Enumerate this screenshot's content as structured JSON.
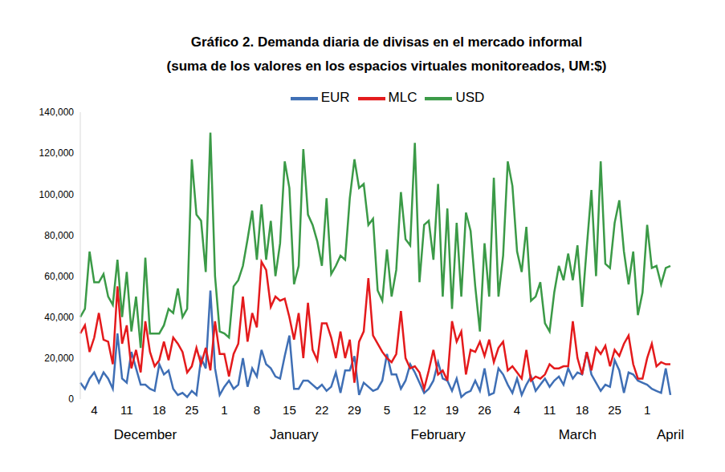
{
  "chart_data": {
    "type": "line",
    "title": "Gráfico 2. Demanda diaria de divisas en el mercado informal",
    "subtitle": "(suma de los valores en los espacios virtuales monitoreados, UM:$)",
    "categories": [
      null,
      null,
      null,
      "4",
      null,
      null,
      null,
      null,
      null,
      null,
      "11",
      null,
      null,
      null,
      null,
      null,
      null,
      "18",
      null,
      null,
      null,
      null,
      null,
      null,
      "25",
      null,
      null,
      null,
      null,
      null,
      null,
      "1",
      null,
      null,
      null,
      null,
      null,
      null,
      "8",
      null,
      null,
      null,
      null,
      null,
      null,
      "15",
      null,
      null,
      null,
      null,
      null,
      null,
      "22",
      null,
      null,
      null,
      null,
      null,
      null,
      "29",
      null,
      null,
      null,
      null,
      null,
      null,
      "5",
      null,
      null,
      null,
      null,
      null,
      null,
      "12",
      null,
      null,
      null,
      null,
      null,
      null,
      "19",
      null,
      null,
      null,
      null,
      null,
      null,
      "26",
      null,
      null,
      null,
      null,
      null,
      null,
      "4",
      null,
      null,
      null,
      null,
      null,
      null,
      "11",
      null,
      null,
      null,
      null,
      null,
      null,
      "18",
      null,
      null,
      null,
      null,
      null,
      null,
      "25",
      null,
      null,
      null,
      null,
      null,
      null,
      "1",
      null,
      null,
      null,
      null,
      null
    ],
    "months": [
      null,
      null,
      null,
      null,
      null,
      null,
      null,
      null,
      null,
      null,
      null,
      null,
      null,
      null,
      "December",
      null,
      null,
      null,
      null,
      null,
      null,
      null,
      null,
      null,
      null,
      null,
      null,
      null,
      null,
      null,
      null,
      null,
      null,
      null,
      null,
      null,
      null,
      null,
      null,
      null,
      null,
      null,
      null,
      null,
      null,
      null,
      "January",
      null,
      null,
      null,
      null,
      null,
      null,
      null,
      null,
      null,
      null,
      null,
      null,
      null,
      null,
      null,
      null,
      null,
      null,
      null,
      null,
      null,
      null,
      null,
      null,
      null,
      null,
      null,
      null,
      null,
      null,
      "February",
      null,
      null,
      null,
      null,
      null,
      null,
      null,
      null,
      null,
      null,
      null,
      null,
      null,
      null,
      null,
      null,
      null,
      null,
      null,
      null,
      null,
      null,
      null,
      null,
      null,
      null,
      null,
      null,
      null,
      "March",
      null,
      null,
      null,
      null,
      null,
      null,
      null,
      null,
      null,
      null,
      null,
      null,
      null,
      null,
      null,
      null,
      null,
      null,
      null,
      "April",
      null
    ],
    "series": [
      {
        "name": "EUR",
        "color": "#3f6fb5",
        "values": [
          8000,
          5000,
          10000,
          13000,
          8000,
          13000,
          10000,
          5000,
          32000,
          10000,
          8000,
          23000,
          15000,
          7000,
          7000,
          5000,
          4000,
          17000,
          12000,
          14000,
          5000,
          2000,
          3000,
          1000,
          4000,
          2000,
          20000,
          15000,
          53000,
          15000,
          2000,
          6000,
          9000,
          5000,
          7000,
          20000,
          6000,
          15000,
          11000,
          24000,
          17000,
          15000,
          11000,
          10000,
          21000,
          31000,
          5000,
          5000,
          9000,
          9000,
          7000,
          5000,
          7000,
          4000,
          6000,
          13000,
          3000,
          14000,
          14000,
          21000,
          2000,
          8000,
          6000,
          4000,
          5000,
          9000,
          22000,
          12000,
          12000,
          5000,
          9000,
          17000,
          13000,
          8000,
          3000,
          5000,
          9000,
          18000,
          10000,
          9000,
          4000,
          10000,
          1000,
          3000,
          4000,
          9000,
          4000,
          15000,
          2000,
          3000,
          15000,
          12000,
          7000,
          3000,
          10000,
          2000,
          7000,
          11000,
          4000,
          7000,
          10000,
          6000,
          9000,
          11000,
          7000,
          15000,
          10000,
          13000,
          12000,
          23000,
          12000,
          8000,
          4000,
          7000,
          6000,
          19000,
          14000,
          3000,
          13000,
          12000,
          9000,
          8000,
          7000,
          5000,
          4000,
          3000,
          15000,
          2000
        ]
      },
      {
        "name": "MLC",
        "color": "#e41a1c",
        "values": [
          32000,
          36000,
          23000,
          30000,
          42000,
          29000,
          28000,
          17000,
          55000,
          27000,
          36000,
          15000,
          24000,
          13000,
          38000,
          23000,
          16000,
          19000,
          28000,
          19000,
          30000,
          27000,
          23000,
          13000,
          16000,
          25000,
          17000,
          25000,
          14000,
          38000,
          22000,
          22000,
          11000,
          22000,
          27000,
          50000,
          28000,
          42000,
          35000,
          67000,
          63000,
          45000,
          50000,
          48000,
          49000,
          40000,
          29000,
          42000,
          20000,
          47000,
          24000,
          19000,
          37000,
          37000,
          30000,
          20000,
          33000,
          20000,
          29000,
          8000,
          28000,
          33000,
          59000,
          31000,
          27000,
          23000,
          20000,
          18000,
          22000,
          43000,
          20000,
          15000,
          16000,
          13000,
          5000,
          14000,
          24000,
          12000,
          14000,
          9000,
          38000,
          28000,
          33000,
          12000,
          24000,
          23000,
          28000,
          21000,
          29000,
          18000,
          25000,
          28000,
          14000,
          16000,
          13000,
          10000,
          24000,
          9000,
          11000,
          10000,
          12000,
          17000,
          15000,
          15000,
          16000,
          16000,
          38000,
          20000,
          12000,
          23000,
          14000,
          25000,
          22000,
          26000,
          16000,
          24000,
          21000,
          27000,
          31000,
          17000,
          10000,
          10000,
          20000,
          27000,
          16000,
          18000,
          17000,
          17000
        ]
      },
      {
        "name": "USD",
        "color": "#3b9a47",
        "values": [
          40000,
          44000,
          72000,
          57000,
          57000,
          61000,
          50000,
          46000,
          68000,
          40000,
          62000,
          33000,
          50000,
          25000,
          69000,
          32000,
          32000,
          32000,
          36000,
          44000,
          42000,
          54000,
          40000,
          44000,
          117000,
          90000,
          87000,
          62000,
          130000,
          60000,
          33000,
          32000,
          30000,
          55000,
          58000,
          65000,
          78000,
          92000,
          68000,
          95000,
          68000,
          87000,
          60000,
          76000,
          116000,
          103000,
          56000,
          65000,
          122000,
          90000,
          85000,
          77000,
          65000,
          98000,
          61000,
          65000,
          70000,
          68000,
          98000,
          117000,
          103000,
          105000,
          85000,
          88000,
          53000,
          48000,
          73000,
          50000,
          63000,
          101000,
          78000,
          75000,
          125000,
          57000,
          85000,
          87000,
          68000,
          105000,
          50000,
          93000,
          44000,
          86000,
          50000,
          91000,
          82000,
          55000,
          33000,
          76000,
          50000,
          108000,
          50000,
          70000,
          116000,
          104000,
          72000,
          62000,
          84000,
          48000,
          50000,
          57000,
          37000,
          33000,
          52000,
          65000,
          58000,
          71000,
          58000,
          75000,
          45000,
          74000,
          102000,
          60000,
          116000,
          66000,
          64000,
          86000,
          97000,
          72000,
          56000,
          72000,
          41000,
          52000,
          85000,
          64000,
          65000,
          56000,
          64000,
          65000
        ]
      }
    ],
    "ylim": [
      0,
      140000
    ],
    "yticks": [
      0,
      {
        "value": 20000,
        "label": "20,000"
      },
      {
        "value": 40000,
        "label": "40,000"
      },
      {
        "value": 60000,
        "label": "60,000"
      },
      {
        "value": 80000,
        "label": "80,000"
      },
      {
        "value": 100000,
        "label": "100,000"
      },
      {
        "value": 120000,
        "label": "120,000"
      },
      {
        "value": 140000,
        "label": "140,000"
      }
    ],
    "grid": false,
    "legend": "top"
  }
}
